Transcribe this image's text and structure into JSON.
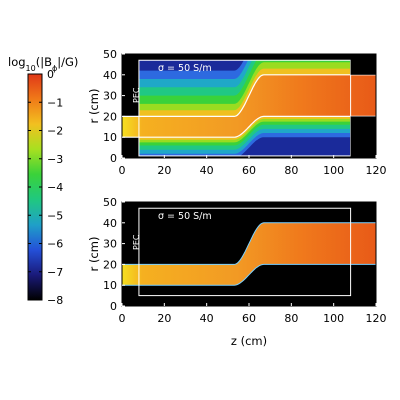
{
  "chart_data": {
    "type": "heatmap",
    "colorbar": {
      "label_html": "log<tspan baseline-shift=\"sub\" font-size=\"8\">10</tspan>(|B<tspan baseline-shift=\"sub\" font-size=\"8\">ϕ</tspan>|/G)",
      "ticks": [
        "0",
        "−1",
        "−2",
        "−3",
        "−4",
        "−5",
        "−6",
        "−7",
        "−8"
      ],
      "range": [
        -8,
        0
      ],
      "colors": [
        "#000000",
        "#1a1a7a",
        "#2450d8",
        "#1fa0c8",
        "#20c880",
        "#3ad23a",
        "#a8e020",
        "#f2c020",
        "#f07a18",
        "#e03818"
      ]
    },
    "panels": [
      {
        "id": "top",
        "annotation": "σ = 50 S/m",
        "pec_label": "PEC",
        "ylabel": "r (cm)",
        "xlim": [
          0,
          120
        ],
        "ylim": [
          0,
          50
        ],
        "xticks": [
          "0",
          "20",
          "40",
          "60",
          "80",
          "100",
          "120"
        ],
        "yticks": [
          "0",
          "10",
          "20",
          "30",
          "40",
          "50"
        ],
        "field_region": "full"
      },
      {
        "id": "bottom",
        "annotation": "σ = 50 S/m",
        "pec_label": "PEC",
        "ylabel": "r (cm)",
        "xlabel": "z (cm)",
        "xlim": [
          0,
          120
        ],
        "ylim": [
          0,
          50
        ],
        "xticks": [
          "0",
          "20",
          "40",
          "60",
          "80",
          "100",
          "120"
        ],
        "yticks": [
          "0",
          "10",
          "20",
          "30",
          "40",
          "50"
        ],
        "field_region": "channel"
      }
    ]
  }
}
